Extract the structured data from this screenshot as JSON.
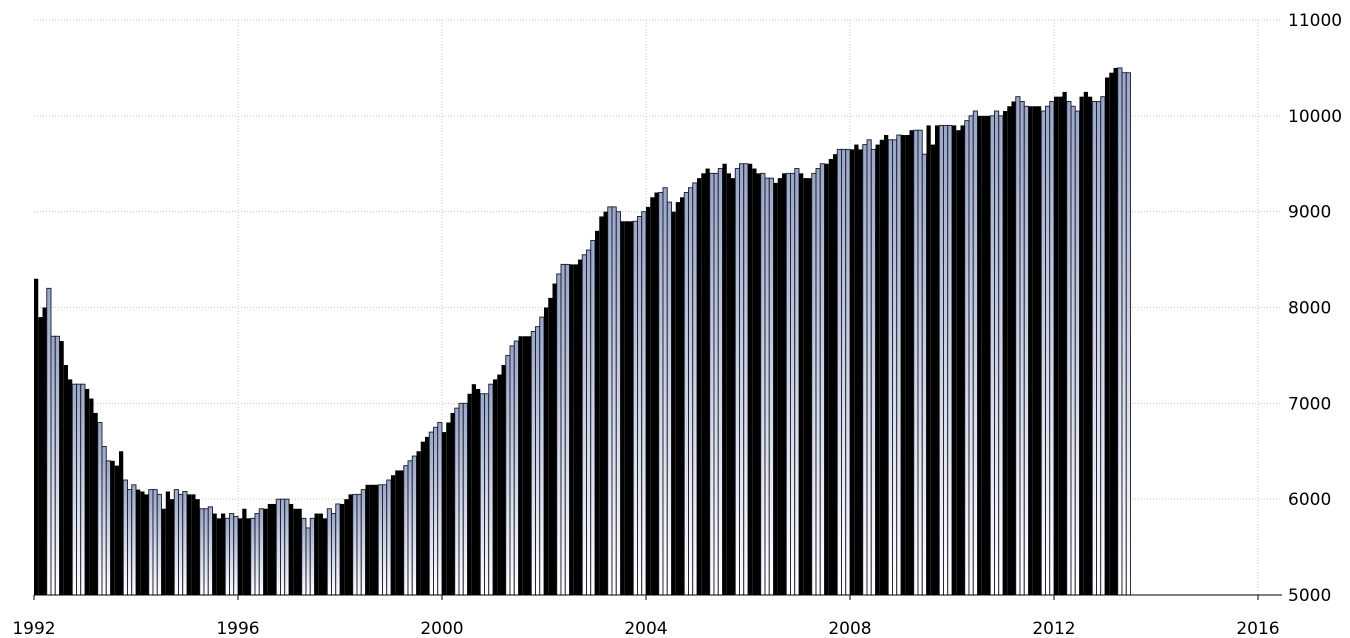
{
  "chart_data": {
    "type": "bar",
    "title": "",
    "xlabel": "",
    "ylabel": "",
    "x_start": "1992-01",
    "frequency": "monthly",
    "ylim": [
      5000,
      11000
    ],
    "y_ticks": [
      "5000",
      "6000",
      "7000",
      "8000",
      "9000",
      "10000",
      "11000"
    ],
    "x_ticks": [
      "1992",
      "1996",
      "2000",
      "2004",
      "2008",
      "2012",
      "2016"
    ],
    "grid": true,
    "y_axis_position": "right",
    "colors": {
      "bar_dark": "#000000",
      "bar_light_top": "#9aa7c8",
      "bar_light_bottom": "#ffffff",
      "bar_light_edge": "#1a1a2a",
      "grid": "#c8c8c8",
      "background": "#ffffff"
    },
    "values": [
      8300,
      7900,
      8000,
      8200,
      7700,
      7700,
      7650,
      7400,
      7250,
      7200,
      7200,
      7200,
      7150,
      7050,
      6900,
      6800,
      6550,
      6400,
      6400,
      6350,
      6500,
      6200,
      6100,
      6150,
      6100,
      6080,
      6050,
      6100,
      6100,
      6050,
      5900,
      6080,
      6000,
      6100,
      6050,
      6080,
      6050,
      6050,
      6000,
      5900,
      5900,
      5920,
      5850,
      5800,
      5850,
      5800,
      5850,
      5820,
      5800,
      5900,
      5800,
      5800,
      5850,
      5900,
      5900,
      5950,
      5950,
      6000,
      6000,
      6000,
      5950,
      5900,
      5900,
      5800,
      5700,
      5800,
      5850,
      5850,
      5800,
      5900,
      5850,
      5950,
      5950,
      6000,
      6050,
      6050,
      6050,
      6100,
      6150,
      6150,
      6150,
      6150,
      6150,
      6200,
      6250,
      6300,
      6300,
      6350,
      6400,
      6450,
      6500,
      6600,
      6650,
      6700,
      6750,
      6800,
      6700,
      6800,
      6900,
      6950,
      7000,
      7000,
      7100,
      7200,
      7150,
      7100,
      7100,
      7200,
      7250,
      7300,
      7400,
      7500,
      7600,
      7650,
      7700,
      7700,
      7700,
      7750,
      7800,
      7900,
      8000,
      8100,
      8250,
      8350,
      8450,
      8450,
      8450,
      8450,
      8500,
      8550,
      8600,
      8700,
      8800,
      8950,
      9000,
      9050,
      9050,
      9000,
      8900,
      8900,
      8900,
      8900,
      8950,
      9000,
      9050,
      9150,
      9200,
      9200,
      9250,
      9100,
      9000,
      9100,
      9150,
      9200,
      9250,
      9300,
      9350,
      9400,
      9450,
      9400,
      9400,
      9450,
      9500,
      9400,
      9350,
      9450,
      9500,
      9500,
      9500,
      9450,
      9400,
      9400,
      9350,
      9350,
      9300,
      9350,
      9400,
      9400,
      9400,
      9450,
      9400,
      9350,
      9350,
      9400,
      9450,
      9500,
      9500,
      9550,
      9600,
      9650,
      9650,
      9650,
      9650,
      9700,
      9650,
      9700,
      9750,
      9650,
      9700,
      9750,
      9800,
      9750,
      9750,
      9800,
      9800,
      9800,
      9850,
      9850,
      9850,
      9600,
      9900,
      9700,
      9900,
      9900,
      9900,
      9900,
      9900,
      9850,
      9900,
      9950,
      10000,
      10050,
      10000,
      10000,
      10000,
      10000,
      10050,
      10000,
      10050,
      10100,
      10150,
      10200,
      10150,
      10100,
      10100,
      10100,
      10100,
      10050,
      10100,
      10150,
      10200,
      10200,
      10250,
      10150,
      10100,
      10050,
      10200,
      10250,
      10200,
      10150,
      10150,
      10200,
      10400,
      10450,
      10500,
      10500,
      10450,
      10450
    ]
  }
}
